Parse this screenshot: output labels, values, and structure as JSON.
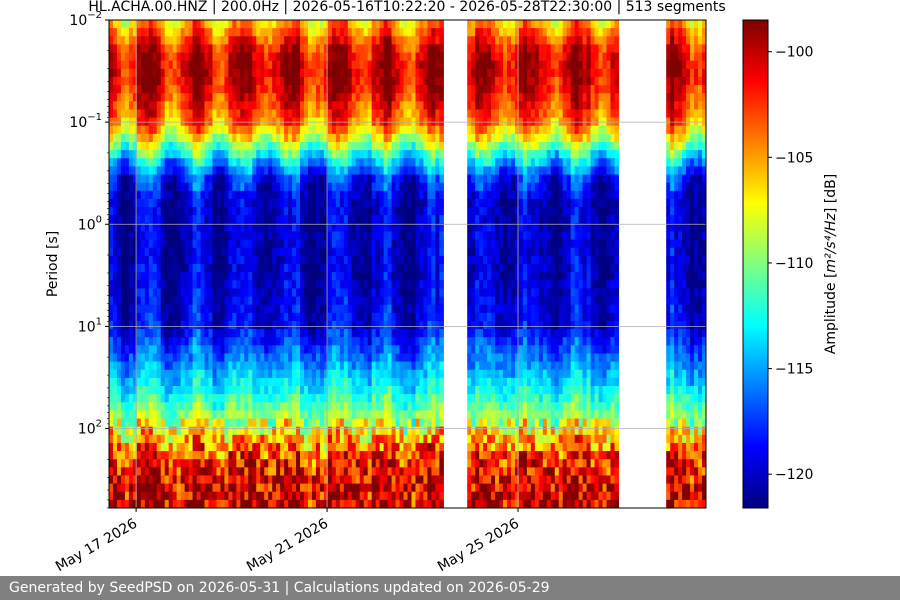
{
  "chart_data": {
    "type": "heatmap",
    "title": "HL.ACHA.00.HNZ | 200.0Hz | 2026-05-16T10:22:20 - 2026-05-28T22:30:00 | 513 segments",
    "ylabel": "Period [s]",
    "yscale": "log",
    "yaxis_inverted": true,
    "ylim": [
      0.01,
      600
    ],
    "yticks": [
      {
        "value": 0.01,
        "base": "10",
        "exp": "−2"
      },
      {
        "value": 0.1,
        "base": "10",
        "exp": "−1"
      },
      {
        "value": 1,
        "base": "10",
        "exp": "0"
      },
      {
        "value": 10,
        "base": "10",
        "exp": "1"
      },
      {
        "value": 100,
        "base": "10",
        "exp": "2"
      }
    ],
    "xaxis_type": "date",
    "xlim": [
      "2026-05-16T10:22:20",
      "2026-05-28T22:30:00"
    ],
    "xticks": [
      {
        "value": "2026-05-17",
        "label": "May 17 2026"
      },
      {
        "value": "2026-05-21",
        "label": "May 21 2026"
      },
      {
        "value": "2026-05-25",
        "label": "May 25 2026"
      }
    ],
    "grid": true,
    "data_gaps": [
      [
        "2026-05-23T10:00:00",
        "2026-05-23T22:00:00"
      ],
      [
        "2026-05-27T02:00:00",
        "2026-05-28T03:00:00"
      ]
    ],
    "colorbar": {
      "label_prefix": "Amplitude [",
      "label_units": "m²/s⁴/Hz",
      "label_suffix": "] [dB]",
      "colormap": "jet",
      "range": [
        -121.6,
        -98.5
      ],
      "ticks": [
        -100,
        -105,
        -110,
        -115,
        -120
      ],
      "tick_labels": [
        "−100",
        "−105",
        "−110",
        "−115",
        "−120"
      ]
    },
    "colormap_stops": [
      "#00007f",
      "#0000ff",
      "#007fff",
      "#00ffff",
      "#7fff7f",
      "#ffff00",
      "#ff7f00",
      "#ff0000",
      "#7f0000"
    ],
    "amplitude_profile_by_period": [
      {
        "period": 0.01,
        "db": -106
      },
      {
        "period": 0.02,
        "db": -101
      },
      {
        "period": 0.03,
        "db": -100
      },
      {
        "period": 0.05,
        "db": -101
      },
      {
        "period": 0.08,
        "db": -103
      },
      {
        "period": 0.1,
        "db": -104
      },
      {
        "period": 0.15,
        "db": -108
      },
      {
        "period": 0.22,
        "db": -113
      },
      {
        "period": 0.35,
        "db": -118
      },
      {
        "period": 0.6,
        "db": -120
      },
      {
        "period": 1,
        "db": -120
      },
      {
        "period": 3,
        "db": -120
      },
      {
        "period": 10,
        "db": -119
      },
      {
        "period": 20,
        "db": -116
      },
      {
        "period": 40,
        "db": -113
      },
      {
        "period": 70,
        "db": -110
      },
      {
        "period": 100,
        "db": -107
      },
      {
        "period": 200,
        "db": -102
      },
      {
        "period": 400,
        "db": -100
      },
      {
        "period": 600,
        "db": -100
      }
    ]
  },
  "footer": {
    "text": "Generated by SeedPSD on 2026-05-31 | Calculations updated on 2026-05-29"
  }
}
